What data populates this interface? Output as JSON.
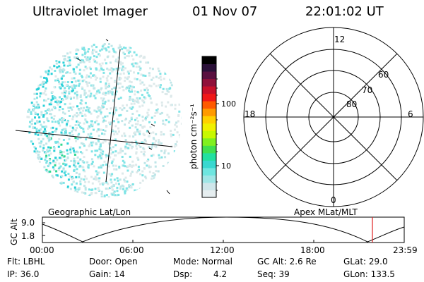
{
  "header": {
    "title": "Ultraviolet Imager",
    "date": "01 Nov 07",
    "time": "22:01:02 UT"
  },
  "colorbar": {
    "unit_label": "photon cm⁻²s⁻¹",
    "ticks": [
      "100",
      "10"
    ],
    "colors": [
      "#e6eef0",
      "#cfe6ea",
      "#9fe6e6",
      "#6ee6e0",
      "#38d8d0",
      "#22e0a0",
      "#40e050",
      "#80f020",
      "#c8f800",
      "#f0f000",
      "#ffd000",
      "#ff9a00",
      "#ff5a00",
      "#f01818",
      "#c8102a",
      "#90103a",
      "#5a1040",
      "#2a1038",
      "#000000"
    ]
  },
  "polar_plot": {
    "clock_labels": [
      "12",
      "18",
      "6",
      "0"
    ],
    "ring_labels": [
      "60",
      "70",
      "80"
    ]
  },
  "timeline": {
    "left_title": "Geographic Lat/Lon",
    "right_title": "Apex MLat/MLT",
    "y_label": "GC Alt",
    "y_ticks": [
      "9.0",
      "1.8"
    ],
    "x_ticks": [
      "00:00",
      "06:00",
      "12:00",
      "18:00",
      "23:59"
    ],
    "marker_color": "#e02020"
  },
  "status": {
    "flt": "Flt: LBHL",
    "ip": "IP: 36.0",
    "door": "Door: Open",
    "gain": "Gain: 14",
    "mode": "Mode: Normal",
    "dsp_label": "Dsp:",
    "dsp_value": "4.2",
    "gc_alt": "GC Alt: 2.6 Re",
    "seq": "Seq: 39",
    "glat": "GLat:  29.0",
    "glon": "GLon: 133.5"
  }
}
